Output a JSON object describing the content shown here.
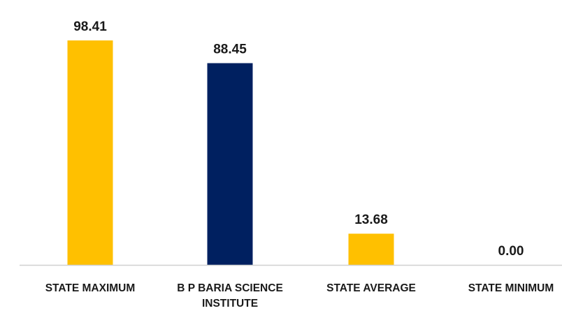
{
  "chart_data": {
    "type": "bar",
    "title": "",
    "xlabel": "",
    "ylabel": "",
    "categories": [
      "STATE MAXIMUM",
      "B P BARIA SCIENCE INSTITUTE",
      "STATE AVERAGE",
      "STATE MINIMUM"
    ],
    "category_label_lines": [
      [
        "STATE MAXIMUM"
      ],
      [
        "B P BARIA SCIENCE",
        "INSTITUTE"
      ],
      [
        "STATE AVERAGE"
      ],
      [
        "STATE MINIMUM"
      ]
    ],
    "values": [
      98.41,
      88.45,
      13.68,
      0.0
    ],
    "value_labels": [
      "98.41",
      "88.45",
      "13.68",
      "0.00"
    ],
    "colors": [
      "#FFC000",
      "#002060",
      "#FFC000",
      "#FFC000"
    ],
    "ylim": [
      0,
      100
    ],
    "grid": false,
    "legend": "none"
  }
}
